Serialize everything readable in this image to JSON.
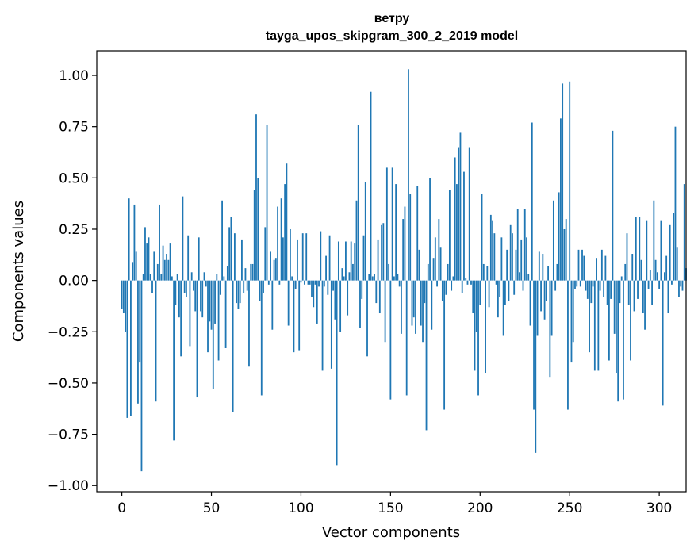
{
  "chart_data": {
    "type": "bar",
    "title_line1": "ветру",
    "title_line2": "tayga_upos_skipgram_300_2_2019 model",
    "xlabel": "Vector components",
    "ylabel": "Components values",
    "xlim": [
      -14,
      315
    ],
    "ylim": [
      -1.03,
      1.12
    ],
    "xticks": [
      0,
      50,
      100,
      150,
      200,
      250,
      300
    ],
    "xtick_labels": [
      "0",
      "50",
      "100",
      "150",
      "200",
      "250",
      "300"
    ],
    "yticks": [
      1.0,
      0.75,
      0.5,
      0.25,
      0.0,
      -0.25,
      -0.5,
      -0.75,
      -1.0
    ],
    "ytick_labels": [
      "1.00",
      "0.75",
      "0.50",
      "0.25",
      "0.00",
      "−0.25",
      "−0.50",
      "−0.75",
      "−1.00"
    ],
    "bar_color": "#1f77b4",
    "grid": false,
    "values": [
      -0.14,
      -0.16,
      -0.25,
      -0.67,
      0.4,
      -0.66,
      0.09,
      0.37,
      0.14,
      -0.6,
      -0.4,
      -0.93,
      0.03,
      0.26,
      0.18,
      0.21,
      0.03,
      -0.06,
      0.14,
      -0.59,
      0.08,
      0.37,
      0.03,
      0.17,
      0.1,
      0.13,
      0.1,
      0.18,
      0.02,
      -0.78,
      -0.12,
      0.03,
      -0.18,
      -0.37,
      0.41,
      -0.06,
      -0.08,
      0.22,
      -0.32,
      0.04,
      -0.05,
      -0.15,
      -0.57,
      0.21,
      -0.15,
      -0.18,
      0.04,
      -0.03,
      -0.35,
      -0.2,
      -0.24,
      -0.53,
      -0.21,
      0.03,
      -0.39,
      -0.07,
      0.39,
      0.02,
      -0.33,
      0.07,
      0.26,
      0.31,
      -0.64,
      0.23,
      -0.11,
      -0.14,
      -0.11,
      0.2,
      -0.06,
      0.06,
      -0.05,
      -0.42,
      0.08,
      0.08,
      0.44,
      0.81,
      0.5,
      -0.1,
      -0.56,
      -0.06,
      0.26,
      0.76,
      -0.02,
      0.14,
      -0.24,
      0.1,
      0.11,
      0.36,
      -0.02,
      0.4,
      0.21,
      0.47,
      0.57,
      -0.22,
      0.25,
      0.02,
      -0.35,
      -0.04,
      0.2,
      -0.34,
      -0.01,
      0.23,
      -0.02,
      0.23,
      -0.02,
      -0.02,
      -0.08,
      -0.13,
      -0.02,
      -0.21,
      -0.03,
      0.24,
      -0.44,
      -0.03,
      0.12,
      -0.07,
      0.22,
      -0.43,
      -0.05,
      -0.19,
      -0.9,
      0.19,
      -0.25,
      0.06,
      0.02,
      0.19,
      -0.17,
      0.04,
      0.19,
      0.08,
      0.18,
      0.39,
      0.76,
      -0.23,
      -0.09,
      0.22,
      0.48,
      -0.37,
      0.03,
      0.92,
      0.02,
      0.03,
      -0.11,
      0.2,
      -0.16,
      0.27,
      0.28,
      -0.3,
      0.55,
      0.08,
      -0.58,
      0.55,
      0.02,
      0.47,
      0.03,
      -0.03,
      -0.26,
      0.3,
      0.36,
      -0.56,
      1.03,
      0.42,
      -0.22,
      -0.18,
      -0.26,
      0.46,
      0.15,
      -0.22,
      -0.3,
      -0.11,
      -0.73,
      0.08,
      0.5,
      -0.24,
      0.11,
      0.21,
      -0.03,
      0.3,
      0.16,
      -0.1,
      -0.63,
      -0.07,
      0.08,
      0.44,
      -0.05,
      0.02,
      0.6,
      0.47,
      0.65,
      0.72,
      -0.06,
      0.53,
      0.01,
      -0.02,
      0.65,
      -0.02,
      -0.16,
      -0.44,
      -0.25,
      -0.56,
      -0.12,
      0.42,
      0.08,
      -0.45,
      0.07,
      -0.13,
      0.32,
      0.29,
      0.23,
      -0.02,
      -0.18,
      -0.08,
      0.21,
      -0.27,
      -0.12,
      0.15,
      -0.1,
      0.27,
      0.23,
      -0.07,
      0.15,
      0.35,
      0.04,
      0.2,
      -0.05,
      0.35,
      0.21,
      0.03,
      -0.22,
      0.77,
      -0.63,
      -0.84,
      -0.27,
      0.14,
      -0.15,
      0.13,
      -0.19,
      -0.1,
      0.07,
      -0.47,
      -0.27,
      0.39,
      -0.05,
      0.08,
      0.43,
      0.79,
      0.96,
      0.25,
      0.3,
      -0.63,
      0.97,
      -0.4,
      -0.3,
      -0.04,
      -0.03,
      0.15,
      -0.03,
      0.15,
      0.12,
      -0.05,
      -0.09,
      -0.35,
      -0.11,
      -0.03,
      -0.44,
      0.11,
      -0.44,
      -0.05,
      0.15,
      -0.08,
      0.12,
      -0.12,
      -0.39,
      -0.09,
      0.73,
      -0.26,
      -0.45,
      -0.59,
      -0.11,
      0.02,
      -0.58,
      0.08,
      0.23,
      -0.12,
      -0.39,
      0.13,
      -0.15,
      0.31,
      -0.09,
      0.31,
      0.1,
      -0.16,
      -0.24,
      0.29,
      -0.04,
      0.05,
      -0.12,
      0.39,
      0.1,
      0.04,
      -0.04,
      0.29,
      -0.61,
      0.04,
      0.12,
      -0.16,
      0.27,
      -0.02,
      0.33,
      0.75,
      0.16,
      -0.08,
      -0.03,
      -0.05,
      0.47,
      0.06
    ]
  }
}
